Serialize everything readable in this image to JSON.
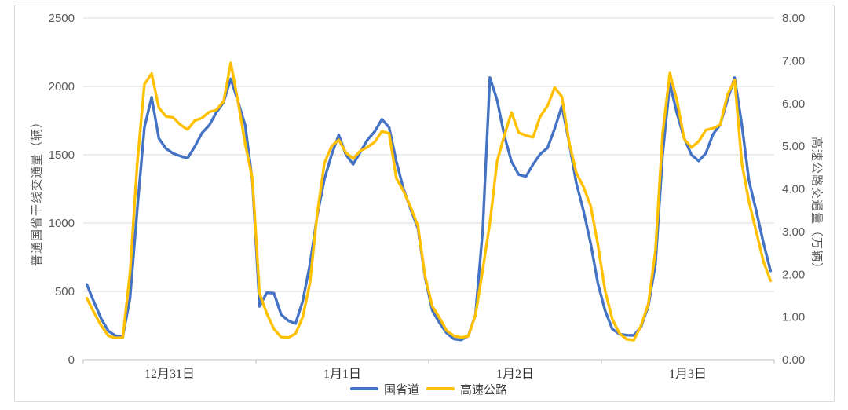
{
  "chart_data": {
    "type": "line",
    "title": "",
    "grid": "horizontal",
    "legend_position": "bottom",
    "x_axis": {
      "day_labels": [
        "12月31日",
        "1月1日",
        "1月2日",
        "1月3日"
      ],
      "points_per_day": 24,
      "total_points": 96
    },
    "y_left": {
      "label": "普通国省干线交通量（辆）",
      "min": 0,
      "max": 2500,
      "tick_step": 500,
      "ticks": [
        "0",
        "500",
        "1000",
        "1500",
        "2000",
        "2500"
      ]
    },
    "y_right": {
      "label": "高速公路交通量（万辆）",
      "min": 0,
      "max": 8,
      "tick_step": 1,
      "ticks": [
        "0.00",
        "1.00",
        "2.00",
        "3.00",
        "4.00",
        "5.00",
        "6.00",
        "7.00",
        "8.00"
      ]
    },
    "series": [
      {
        "name": "国省道",
        "axis": "left",
        "color": "#4472C4",
        "values": [
          550,
          420,
          300,
          210,
          175,
          170,
          450,
          1100,
          1700,
          1920,
          1620,
          1545,
          1510,
          1490,
          1475,
          1560,
          1660,
          1715,
          1810,
          1885,
          2055,
          1890,
          1715,
          1310,
          390,
          490,
          487,
          330,
          285,
          265,
          430,
          700,
          1050,
          1320,
          1500,
          1645,
          1500,
          1430,
          1520,
          1610,
          1670,
          1760,
          1700,
          1450,
          1250,
          1100,
          960,
          600,
          360,
          270,
          195,
          152,
          145,
          175,
          330,
          950,
          2065,
          1900,
          1640,
          1450,
          1355,
          1340,
          1430,
          1505,
          1550,
          1690,
          1855,
          1590,
          1295,
          1090,
          850,
          560,
          360,
          225,
          188,
          180,
          178,
          240,
          390,
          700,
          1500,
          2020,
          1800,
          1620,
          1500,
          1455,
          1510,
          1650,
          1720,
          1900,
          2065,
          1720,
          1310,
          1090,
          855,
          650
        ]
      },
      {
        "name": "高速公路",
        "axis": "right",
        "color": "#FFC000",
        "values": [
          1.44,
          1.1,
          0.8,
          0.56,
          0.51,
          0.52,
          2.05,
          4.6,
          6.45,
          6.7,
          5.9,
          5.7,
          5.67,
          5.5,
          5.39,
          5.6,
          5.66,
          5.8,
          5.85,
          6.05,
          6.95,
          6.05,
          5.05,
          4.25,
          1.55,
          1.08,
          0.72,
          0.53,
          0.52,
          0.61,
          1.0,
          1.8,
          3.4,
          4.6,
          5.0,
          5.15,
          4.85,
          4.71,
          4.89,
          4.98,
          5.1,
          5.35,
          5.3,
          4.25,
          3.95,
          3.57,
          3.13,
          1.95,
          1.25,
          0.98,
          0.68,
          0.56,
          0.52,
          0.55,
          1.05,
          2.1,
          3.2,
          4.65,
          5.25,
          5.79,
          5.32,
          5.25,
          5.21,
          5.7,
          5.94,
          6.37,
          6.16,
          5.1,
          4.38,
          4.05,
          3.6,
          2.7,
          1.62,
          0.95,
          0.62,
          0.48,
          0.46,
          0.8,
          1.3,
          2.55,
          5.3,
          6.71,
          6.07,
          5.17,
          4.97,
          5.11,
          5.38,
          5.42,
          5.5,
          6.2,
          6.55,
          4.6,
          3.7,
          3.0,
          2.3,
          1.85
        ]
      }
    ],
    "colors": {
      "gridline": "#D9D9D9",
      "axis_line": "#BFBFBF",
      "tick_label": "#595959",
      "date_label": "#333333"
    }
  }
}
